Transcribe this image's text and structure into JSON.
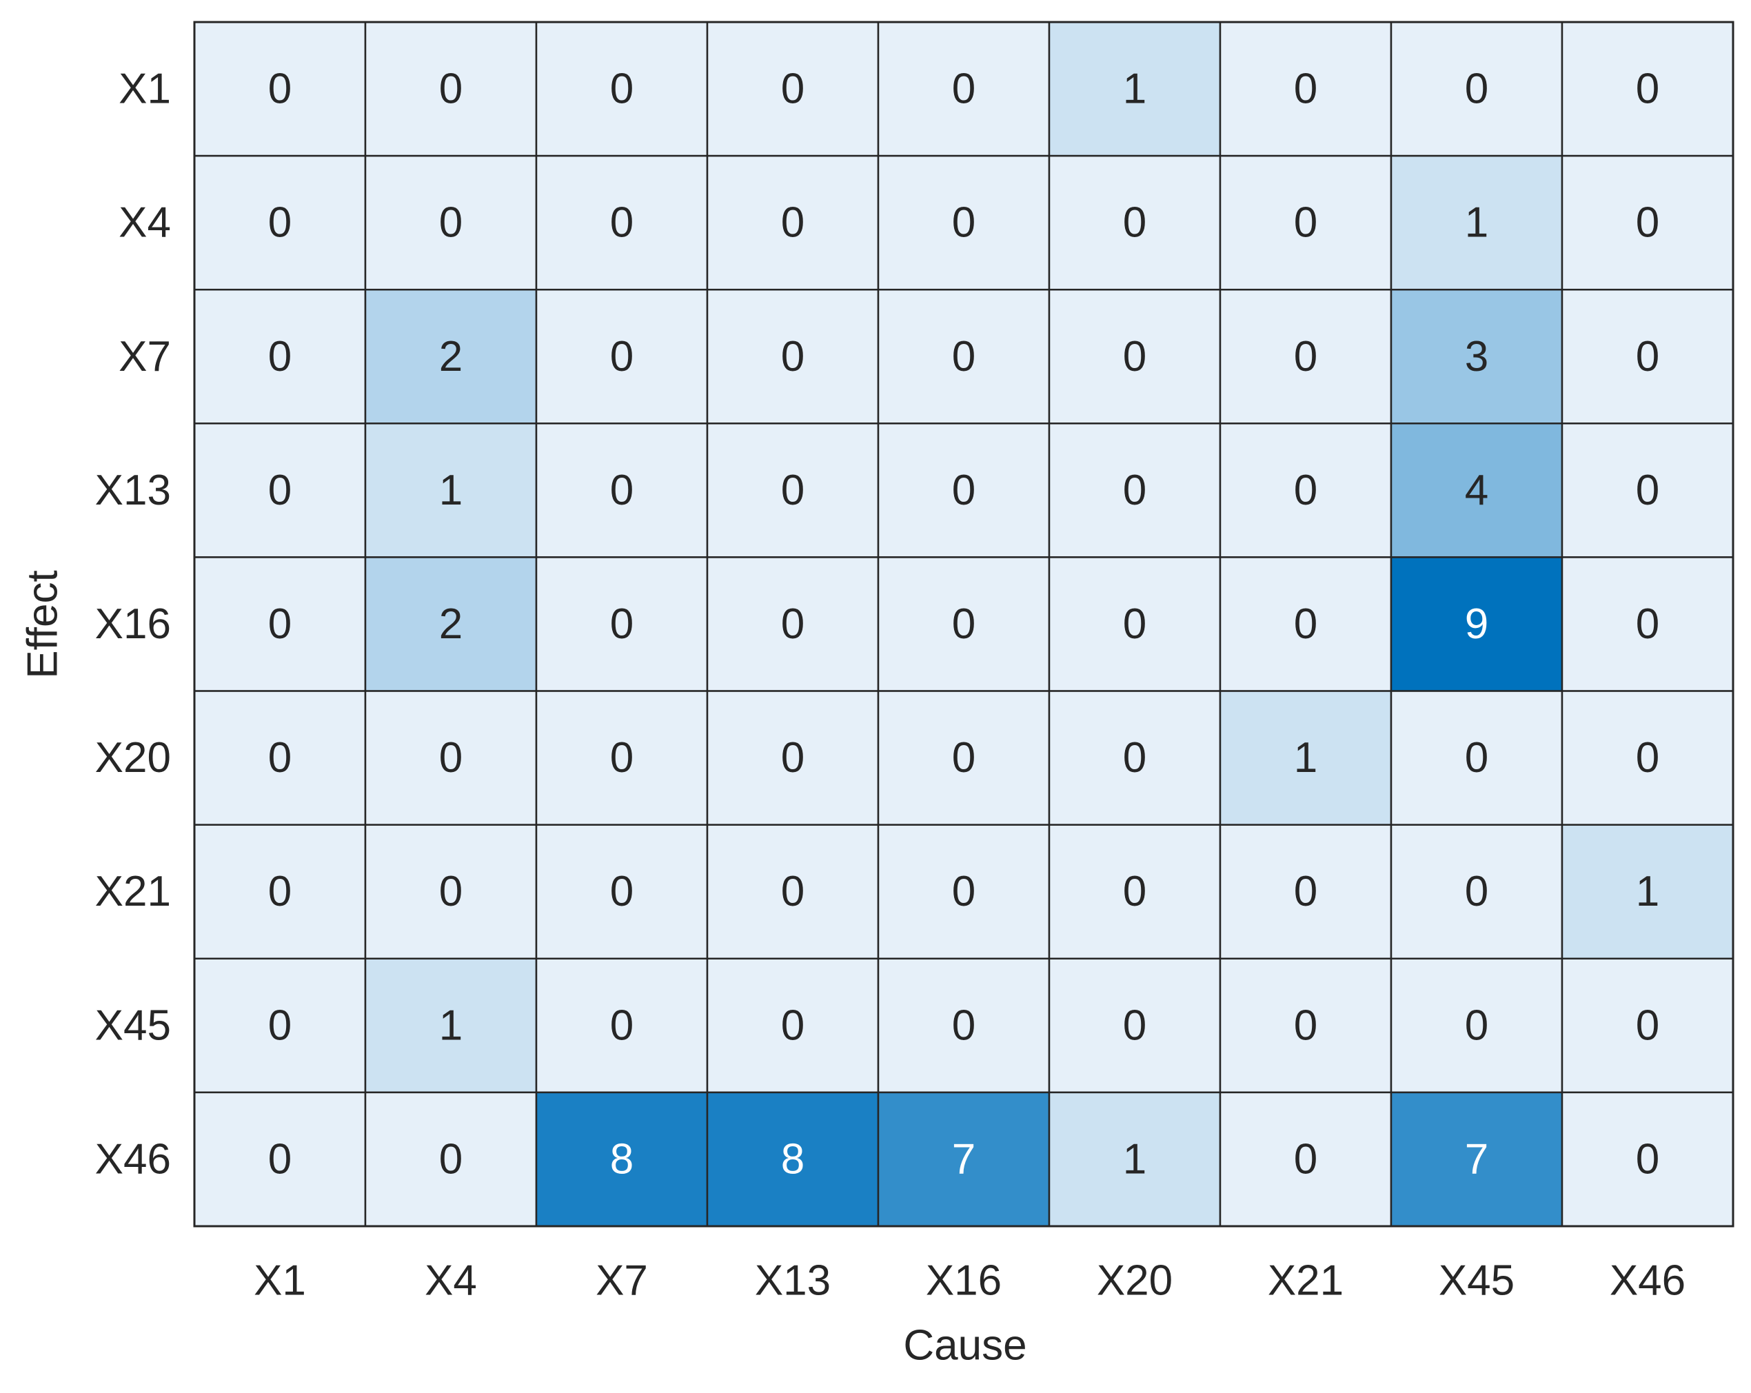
{
  "chart_data": {
    "type": "heatmap",
    "x_label": "Cause",
    "y_label": "Effect",
    "x_categories": [
      "X1",
      "X4",
      "X7",
      "X13",
      "X16",
      "X20",
      "X21",
      "X45",
      "X46"
    ],
    "y_categories": [
      "X1",
      "X4",
      "X7",
      "X13",
      "X16",
      "X20",
      "X21",
      "X45",
      "X46"
    ],
    "values": [
      [
        0,
        0,
        0,
        0,
        0,
        1,
        0,
        0,
        0
      ],
      [
        0,
        0,
        0,
        0,
        0,
        0,
        0,
        1,
        0
      ],
      [
        0,
        2,
        0,
        0,
        0,
        0,
        0,
        3,
        0
      ],
      [
        0,
        1,
        0,
        0,
        0,
        0,
        0,
        4,
        0
      ],
      [
        0,
        2,
        0,
        0,
        0,
        0,
        0,
        9,
        0
      ],
      [
        0,
        0,
        0,
        0,
        0,
        0,
        1,
        0,
        0
      ],
      [
        0,
        0,
        0,
        0,
        0,
        0,
        0,
        0,
        1
      ],
      [
        0,
        1,
        0,
        0,
        0,
        0,
        0,
        0,
        0
      ],
      [
        0,
        0,
        8,
        8,
        7,
        1,
        0,
        7,
        0
      ]
    ],
    "colormap": [
      "#e6f0f9",
      "#0072bd"
    ]
  }
}
